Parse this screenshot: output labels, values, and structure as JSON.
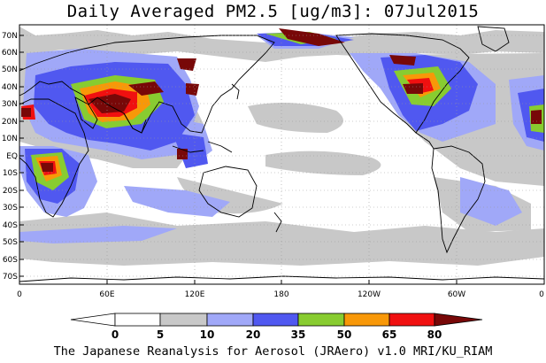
{
  "title": "Daily Averaged PM2.5 [ug/m3]: 07Jul2015",
  "footer": "The Japanese Reanalysis for Aerosol (JRAero) v1.0 MRI/KU_RIAM",
  "map": {
    "projection": "equirectangular, lon 0 to 360 (centred 180), lat 75S to 75N",
    "lat_labels": [
      "70N",
      "60N",
      "50N",
      "40N",
      "30N",
      "20N",
      "10N",
      "EQ",
      "10S",
      "20S",
      "30S",
      "40S",
      "50S",
      "60S",
      "70S"
    ],
    "lon_labels": [
      "0",
      "60E",
      "120E",
      "180",
      "120W",
      "60W",
      "0"
    ],
    "grid": "dotted"
  },
  "colorbar": {
    "labels": [
      "0",
      "5",
      "10",
      "20",
      "35",
      "50",
      "65",
      "80"
    ],
    "colors": [
      "#ffffff",
      "#c8c8c8",
      "#a0a8f8",
      "#5058f0",
      "#88cc30",
      "#f89808",
      "#f01010",
      "#780808"
    ]
  }
}
